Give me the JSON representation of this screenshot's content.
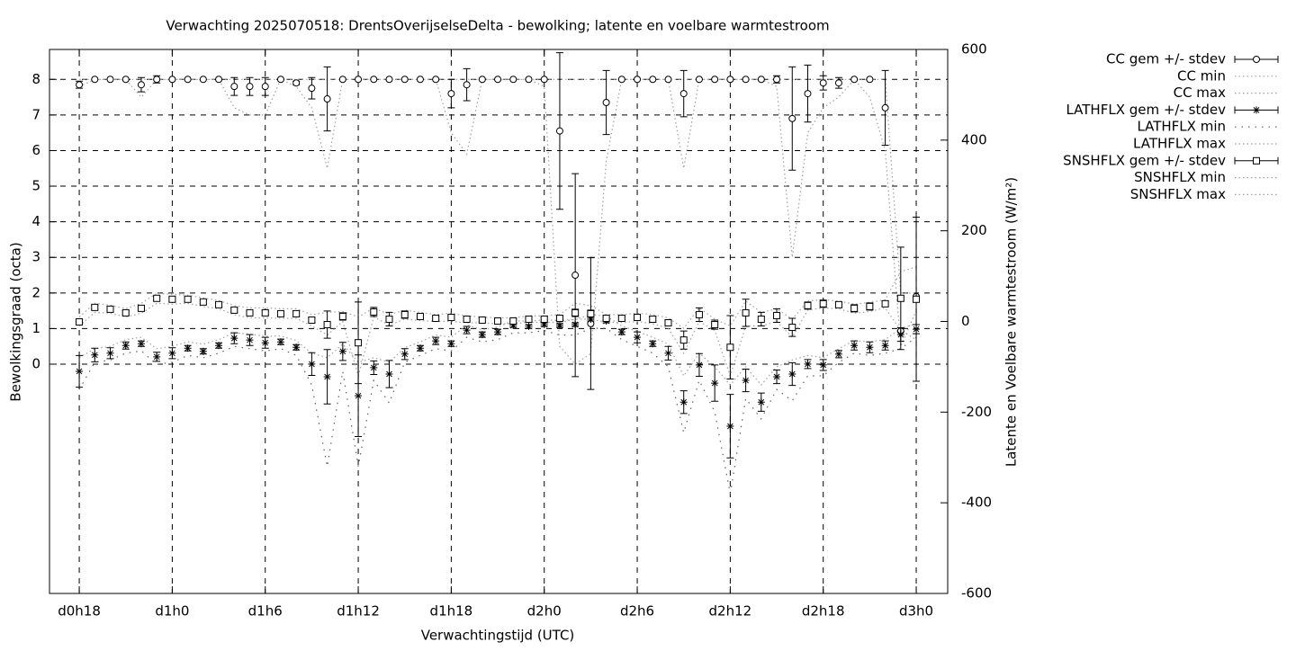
{
  "chart_data": {
    "type": "scatter",
    "title": "Verwachting 2025070518: DrentsOverijselseDelta - bewolking; latente en voelbare warmtestroom",
    "x_label": "Verwachtingstijd (UTC)",
    "y_label": "Bewolkingsgraad (octa)",
    "y2_label": "Latente en Voelbare warmtestroom (W/m²)",
    "x": [
      18,
      19,
      20,
      21,
      22,
      23,
      24,
      25,
      26,
      27,
      28,
      29,
      30,
      31,
      32,
      33,
      34,
      35,
      36,
      37,
      38,
      39,
      40,
      41,
      42,
      43,
      44,
      45,
      46,
      47,
      48,
      49,
      50,
      51,
      52,
      53,
      54,
      55,
      56,
      57,
      58,
      59,
      60,
      61,
      62,
      63,
      64,
      65,
      66,
      67,
      68,
      69,
      70,
      71,
      72
    ],
    "xlim": [
      16.08,
      74.03
    ],
    "xticks": [
      {
        "value": 18,
        "label": "d0h18"
      },
      {
        "value": 24,
        "label": "d1h0"
      },
      {
        "value": 30,
        "label": "d1h6"
      },
      {
        "value": 36,
        "label": "d1h12"
      },
      {
        "value": 42,
        "label": "d1h18"
      },
      {
        "value": 48,
        "label": "d2h0"
      },
      {
        "value": 54,
        "label": "d2h6"
      },
      {
        "value": 60,
        "label": "d2h12"
      },
      {
        "value": 66,
        "label": "d2h18"
      },
      {
        "value": 72,
        "label": "d3h0"
      }
    ],
    "ylim": [
      -6.44,
      8.84
    ],
    "yticks": [
      0,
      1,
      2,
      3,
      4,
      5,
      6,
      7,
      8
    ],
    "y2lim": [
      -600,
      600
    ],
    "y2ticks": [
      -600,
      -400,
      -200,
      0,
      200,
      400,
      600
    ],
    "grid": true,
    "legend": "outside-right-top",
    "series": [
      {
        "name": "CC gem +/- stdev",
        "color": "#000000",
        "marker": "circle",
        "values": [
          7.85,
          8,
          8,
          8,
          7.85,
          8,
          8,
          8,
          8,
          8,
          7.8,
          7.8,
          7.8,
          8,
          7.9,
          7.75,
          7.45,
          8,
          8,
          8,
          8,
          8,
          8,
          8,
          7.6,
          7.85,
          8,
          8,
          8,
          8,
          8,
          6.55,
          2.5,
          1.14,
          7.35,
          8,
          8,
          8,
          8,
          7.6,
          8,
          8,
          8,
          8,
          8,
          8,
          6.9,
          7.6,
          7.9,
          7.9,
          8,
          8,
          7.2,
          0.93,
          1.9
        ],
        "errors": [
          0.1,
          0,
          0,
          0,
          0.2,
          0.1,
          0,
          0,
          0,
          0,
          0.25,
          0.25,
          0.25,
          0,
          0.05,
          0.3,
          0.9,
          0,
          0,
          0,
          0,
          0,
          0,
          0,
          0.4,
          0.45,
          0,
          0,
          0,
          0,
          0,
          2.2,
          2.85,
          1.85,
          0.9,
          0,
          0,
          0,
          0,
          0.65,
          0,
          0,
          0,
          0,
          0,
          0.1,
          1.45,
          0.8,
          0.2,
          0.15,
          0,
          0,
          1.05,
          0,
          0
        ]
      },
      {
        "name": "CC min",
        "color": "#a0a0a0",
        "line": "dotted",
        "values": [
          7.8,
          8,
          8,
          8,
          7.5,
          8,
          8,
          8,
          8,
          8,
          7.2,
          7,
          7,
          8,
          7.8,
          7.2,
          5.5,
          8,
          8,
          8,
          8,
          8,
          8,
          8,
          6.5,
          5.9,
          8,
          8,
          8,
          8,
          7.8,
          0.5,
          0,
          0.3,
          5.7,
          8,
          8,
          8,
          8,
          5.5,
          8,
          8,
          8,
          8,
          8,
          7.8,
          3,
          6.5,
          7.2,
          7.5,
          8,
          7.5,
          6,
          0.5,
          1.5
        ]
      },
      {
        "name": "CC max",
        "color": "#a0a0a0",
        "line": "dotted",
        "values": [
          8,
          8,
          8,
          8,
          8,
          8,
          8,
          8,
          8,
          8,
          8,
          8,
          8,
          8,
          8,
          8,
          8,
          8,
          8,
          8,
          8,
          8,
          8,
          8,
          8,
          8,
          8,
          8,
          8,
          8,
          8,
          8,
          8,
          8,
          8,
          8,
          8,
          8,
          8,
          8,
          8,
          8,
          8,
          8,
          8,
          8,
          8,
          8,
          8,
          8,
          8,
          8,
          8,
          2,
          2
        ]
      },
      {
        "name": "LATHFLX gem +/- stdev",
        "color": "#000000",
        "marker": "star",
        "axis": "y2",
        "values": [
          -110,
          -74,
          -70,
          -53,
          -49,
          -78,
          -70,
          -59,
          -66,
          -53,
          -37,
          -41,
          -47,
          -45,
          -57,
          -94,
          -122,
          -66,
          -164,
          -102,
          -116,
          -72,
          -59,
          -43,
          -49,
          -19,
          -29,
          -23,
          -9,
          -11,
          -7,
          -9,
          -7,
          5,
          1,
          -23,
          -35,
          -49,
          -70,
          -178,
          -96,
          -136,
          -231,
          -130,
          -178,
          -122,
          -116,
          -94,
          -96,
          -72,
          -53,
          -57,
          -53,
          -29,
          -17
        ],
        "errors": [
          35,
          15,
          12,
          8,
          6,
          10,
          12,
          6,
          6,
          6,
          12,
          12,
          12,
          6,
          6,
          25,
          60,
          20,
          90,
          15,
          30,
          12,
          6,
          8,
          6,
          8,
          6,
          6,
          4,
          4,
          4,
          4,
          4,
          4,
          4,
          6,
          12,
          6,
          15,
          25,
          25,
          40,
          70,
          25,
          20,
          15,
          25,
          10,
          12,
          8,
          10,
          12,
          10,
          15,
          10
        ]
      },
      {
        "name": "LATHFLX min",
        "color": "#606060",
        "line": "sparse",
        "axis": "y2",
        "values": [
          -150,
          -90,
          -85,
          -70,
          -65,
          -95,
          -90,
          -75,
          -80,
          -70,
          -55,
          -60,
          -65,
          -60,
          -75,
          -140,
          -320,
          -110,
          -320,
          -130,
          -180,
          -90,
          -75,
          -60,
          -65,
          -35,
          -45,
          -40,
          -25,
          -25,
          -20,
          -30,
          -30,
          -15,
          -15,
          -40,
          -55,
          -70,
          -100,
          -245,
          -130,
          -200,
          -380,
          -170,
          -215,
          -150,
          -175,
          -120,
          -120,
          -90,
          -70,
          -75,
          -70,
          -60,
          -35
        ]
      },
      {
        "name": "LATHFLX max",
        "color": "#a0a0a0",
        "line": "dotted",
        "axis": "y2",
        "values": [
          -80,
          -60,
          -55,
          -40,
          -35,
          -60,
          -55,
          -45,
          -50,
          -40,
          -25,
          -28,
          -33,
          -32,
          -42,
          -70,
          -80,
          -50,
          -90,
          -80,
          -90,
          -58,
          -45,
          -30,
          -35,
          -8,
          -18,
          -12,
          2,
          0,
          4,
          2,
          5,
          15,
          12,
          -10,
          -22,
          -35,
          -50,
          -120,
          -70,
          -100,
          -140,
          -100,
          -140,
          -100,
          -85,
          -75,
          -80,
          -60,
          -42,
          -45,
          -40,
          -15,
          -5
        ]
      },
      {
        "name": "SNSHFLX gem +/- stdev",
        "color": "#000000",
        "marker": "square",
        "axis": "y2",
        "values": [
          -1,
          31,
          27,
          19,
          29,
          51,
          49,
          49,
          43,
          37,
          25,
          19,
          19,
          17,
          17,
          3,
          -7,
          11,
          -47,
          21,
          5,
          15,
          11,
          7,
          9,
          5,
          3,
          1,
          1,
          5,
          5,
          7,
          19,
          17,
          7,
          7,
          9,
          5,
          -3,
          -41,
          15,
          -7,
          -57,
          19,
          5,
          13,
          -13,
          35,
          39,
          37,
          29,
          33,
          39,
          51,
          49
        ],
        "errors": [
          4,
          4,
          4,
          4,
          6,
          4,
          4,
          4,
          4,
          4,
          4,
          6,
          6,
          4,
          6,
          6,
          30,
          8,
          90,
          10,
          15,
          8,
          4,
          4,
          4,
          4,
          4,
          4,
          4,
          4,
          4,
          4,
          8,
          8,
          4,
          4,
          4,
          6,
          6,
          20,
          15,
          10,
          70,
          30,
          15,
          15,
          20,
          8,
          8,
          6,
          8,
          8,
          6,
          113,
          181
        ]
      },
      {
        "name": "SNSHFLX min",
        "color": "#a0a0a0",
        "line": "dotted",
        "axis": "y2",
        "values": [
          -10,
          20,
          18,
          10,
          18,
          40,
          38,
          40,
          33,
          28,
          15,
          8,
          8,
          7,
          7,
          -10,
          -30,
          0,
          -120,
          10,
          -8,
          5,
          2,
          0,
          0,
          -3,
          -3,
          -5,
          -5,
          -2,
          -2,
          -2,
          5,
          5,
          -2,
          -2,
          0,
          -5,
          -15,
          -70,
          0,
          -20,
          -120,
          -10,
          -10,
          0,
          -35,
          25,
          30,
          28,
          18,
          22,
          30,
          -20,
          -40
        ]
      },
      {
        "name": "SNSHFLX max",
        "color": "#a0a0a0",
        "line": "dotted",
        "axis": "y2",
        "values": [
          10,
          40,
          36,
          28,
          40,
          62,
          60,
          58,
          52,
          46,
          35,
          30,
          30,
          28,
          28,
          15,
          20,
          22,
          10,
          30,
          15,
          25,
          20,
          15,
          18,
          12,
          10,
          8,
          8,
          12,
          12,
          15,
          40,
          35,
          15,
          15,
          18,
          15,
          8,
          -15,
          30,
          5,
          -10,
          45,
          20,
          28,
          5,
          45,
          48,
          45,
          38,
          42,
          48,
          110,
          120
        ]
      }
    ]
  }
}
